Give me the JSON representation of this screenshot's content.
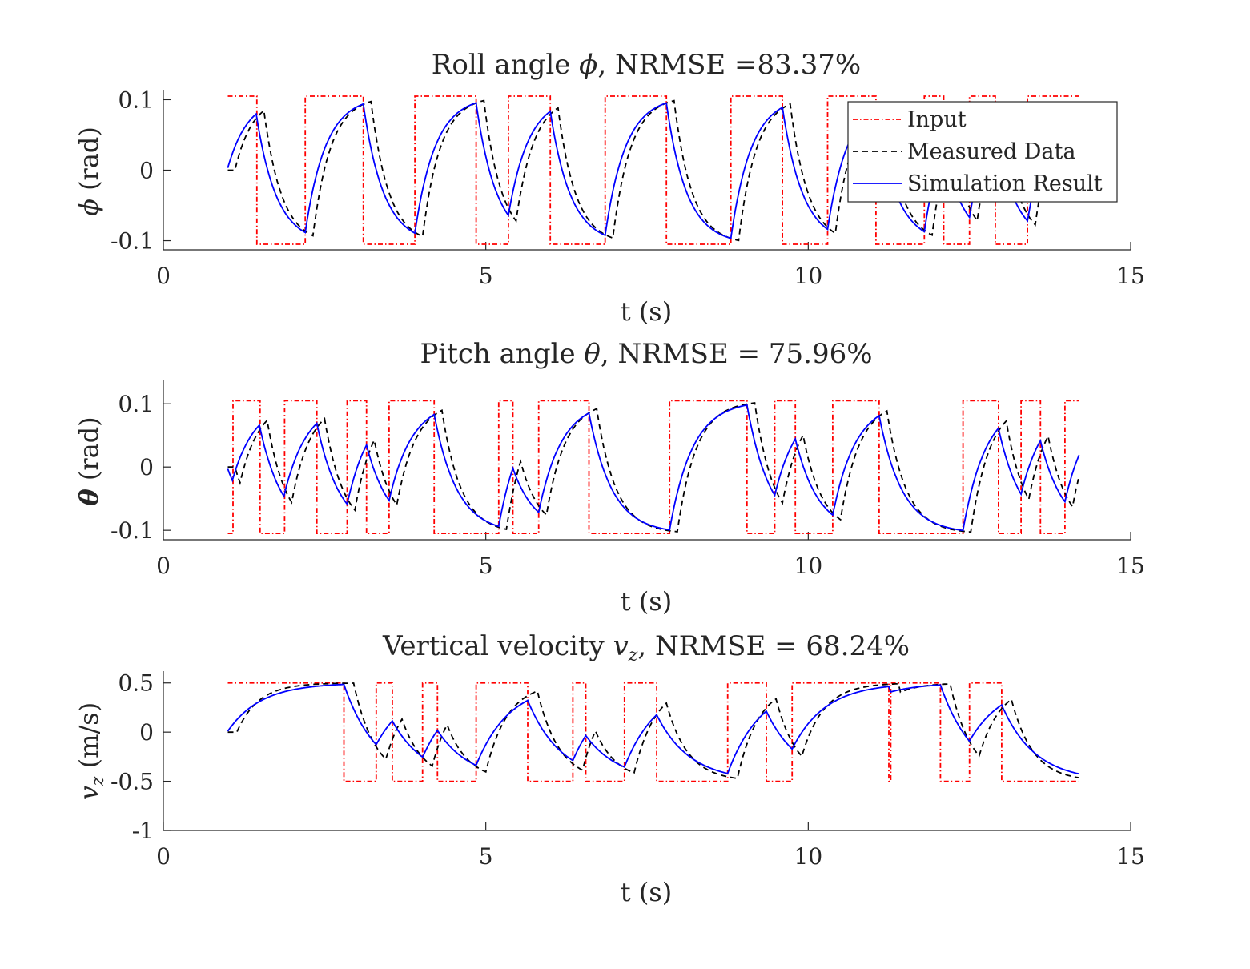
{
  "chart_data": [
    {
      "type": "line",
      "title": "Roll angle ϕ, NRMSE =83.37%",
      "xlabel": "t (s)",
      "ylabel": "ϕ (rad)",
      "xlim": [
        0,
        15
      ],
      "ylim": [
        -0.113,
        0.113
      ],
      "xticks": [
        0,
        5,
        10,
        15
      ],
      "xtick_labels": [
        "0",
        "5",
        "10",
        "15"
      ],
      "yticks": [
        0.1,
        0,
        -0.1
      ],
      "ytick_labels": [
        "0.1",
        "0",
        "-0.1"
      ],
      "legend": {
        "position": "top-right",
        "entries": [
          "Input",
          "Measured Data",
          "Simulation Result"
        ]
      },
      "amplitude": 0.105,
      "series": [
        {
          "name": "Input",
          "color": "#ff0000",
          "style": "dashdot",
          "x": [
            1,
            1.45,
            1.45,
            2.2,
            2.2,
            3.1,
            3.1,
            3.9,
            3.9,
            4.85,
            4.85,
            5.35,
            5.35,
            6,
            6,
            6.85,
            6.85,
            7.8,
            7.8,
            8.8,
            8.8,
            9.6,
            9.6,
            10.3,
            10.3,
            11.05,
            11.05,
            11.8,
            11.8,
            12.1,
            12.1,
            12.5,
            12.5,
            12.9,
            12.9,
            13.4,
            13.4,
            14.2
          ],
          "y": [
            0.105,
            0.105,
            -0.105,
            -0.105,
            0.105,
            0.105,
            -0.105,
            -0.105,
            0.105,
            0.105,
            -0.105,
            -0.105,
            0.105,
            0.105,
            -0.105,
            -0.105,
            0.105,
            0.105,
            -0.105,
            -0.105,
            0.105,
            0.105,
            -0.105,
            -0.105,
            0.105,
            0.105,
            -0.105,
            -0.105,
            0.105,
            0.105,
            -0.105,
            -0.105,
            0.105,
            0.105,
            -0.105,
            -0.105,
            0.105,
            0.105
          ]
        },
        {
          "name": "Measured Data",
          "color": "#000000",
          "style": "dashed",
          "tau": 0.28,
          "delay": 0.12,
          "start_time": 1,
          "end_time": 14.2
        },
        {
          "name": "Simulation Result",
          "color": "#0000ff",
          "style": "solid",
          "tau": 0.32,
          "delay": 0,
          "start_time": 1,
          "end_time": 14.2
        }
      ]
    },
    {
      "type": "line",
      "title": "Pitch angle θ, NRMSE = 75.96%",
      "xlabel": "t (s)",
      "ylabel": "θ (rad)",
      "xlim": [
        0,
        15
      ],
      "ylim": [
        -0.115,
        0.137
      ],
      "xticks": [
        0,
        5,
        10,
        15
      ],
      "xtick_labels": [
        "0",
        "5",
        "10",
        "15"
      ],
      "yticks": [
        0.1,
        0,
        -0.1
      ],
      "ytick_labels": [
        "0.1",
        "0",
        "-0.1"
      ],
      "amplitude": 0.105,
      "series": [
        {
          "name": "Input",
          "color": "#ff0000",
          "style": "dashdot",
          "x": [
            1,
            1.08,
            1.08,
            1.5,
            1.5,
            1.88,
            1.88,
            2.38,
            2.38,
            2.85,
            2.85,
            3.15,
            3.15,
            3.5,
            3.5,
            4.2,
            4.2,
            5.2,
            5.2,
            5.42,
            5.42,
            5.82,
            5.82,
            6.6,
            6.6,
            7.85,
            7.85,
            9.05,
            9.05,
            9.48,
            9.48,
            9.8,
            9.8,
            10.38,
            10.38,
            11.1,
            11.1,
            12.4,
            12.4,
            12.95,
            12.95,
            13.3,
            13.3,
            13.6,
            13.6,
            13.98,
            13.98,
            14.2
          ],
          "y": [
            -0.105,
            -0.105,
            0.105,
            0.105,
            -0.105,
            -0.105,
            0.105,
            0.105,
            -0.105,
            -0.105,
            0.105,
            0.105,
            -0.105,
            -0.105,
            0.105,
            0.105,
            -0.105,
            -0.105,
            0.105,
            0.105,
            -0.105,
            -0.105,
            0.105,
            0.105,
            -0.105,
            -0.105,
            0.105,
            0.105,
            -0.105,
            -0.105,
            0.105,
            0.105,
            -0.105,
            -0.105,
            0.105,
            0.105,
            -0.105,
            -0.105,
            0.105,
            0.105,
            -0.105,
            -0.105,
            0.105,
            0.105,
            -0.105,
            -0.105,
            0.105,
            0.105
          ]
        },
        {
          "name": "Measured Data",
          "color": "#000000",
          "style": "dashed",
          "tau": 0.3,
          "delay": 0.12,
          "start_time": 1,
          "end_time": 14.2
        },
        {
          "name": "Simulation Result",
          "color": "#0000ff",
          "style": "solid",
          "tau": 0.36,
          "delay": 0,
          "start_time": 1,
          "end_time": 14.2
        }
      ]
    },
    {
      "type": "line",
      "title": "Vertical velocity v_z, NRMSE = 68.24%",
      "xlabel": "t (s)",
      "ylabel": "v_z (m/s)",
      "xlim": [
        0,
        15
      ],
      "ylim": [
        -1,
        0.62
      ],
      "xticks": [
        0,
        5,
        10,
        15
      ],
      "xtick_labels": [
        "0",
        "5",
        "10",
        "15"
      ],
      "yticks": [
        0.5,
        0,
        -0.5,
        -1
      ],
      "ytick_labels": [
        "0.5",
        "0",
        "-0.5",
        "-1"
      ],
      "amplitude": 0.5,
      "series": [
        {
          "name": "Input",
          "color": "#ff0000",
          "style": "dashdot",
          "x": [
            1,
            2.8,
            2.8,
            3.3,
            3.3,
            3.55,
            3.55,
            4.02,
            4.02,
            4.25,
            4.25,
            4.85,
            4.85,
            5.65,
            5.65,
            6.35,
            6.35,
            6.55,
            6.55,
            7.15,
            7.15,
            7.65,
            7.65,
            8.75,
            8.75,
            9.35,
            9.35,
            9.75,
            9.75,
            11.25,
            11.25,
            11.28,
            11.28,
            12.05,
            12.05,
            12.5,
            12.5,
            13.0,
            13.0,
            14.2
          ],
          "y": [
            0.5,
            0.5,
            -0.5,
            -0.5,
            0.5,
            0.5,
            -0.5,
            -0.5,
            0.5,
            0.5,
            -0.5,
            -0.5,
            0.5,
            0.5,
            -0.5,
            -0.5,
            0.5,
            0.5,
            -0.5,
            -0.5,
            0.5,
            0.5,
            -0.5,
            -0.5,
            0.5,
            0.5,
            -0.5,
            -0.5,
            0.5,
            0.5,
            -0.5,
            -0.5,
            0.5,
            0.5,
            -0.5,
            -0.5,
            0.5,
            0.5,
            -0.5,
            -0.5
          ]
        },
        {
          "name": "Measured Data",
          "color": "#000000",
          "style": "dashed",
          "tau": 0.34,
          "delay": 0.15,
          "start_time": 1,
          "end_time": 14.2
        },
        {
          "name": "Simulation Result",
          "color": "#0000ff",
          "style": "solid",
          "tau": 0.52,
          "delay": 0,
          "start_time": 1,
          "end_time": 14.2
        }
      ]
    }
  ]
}
